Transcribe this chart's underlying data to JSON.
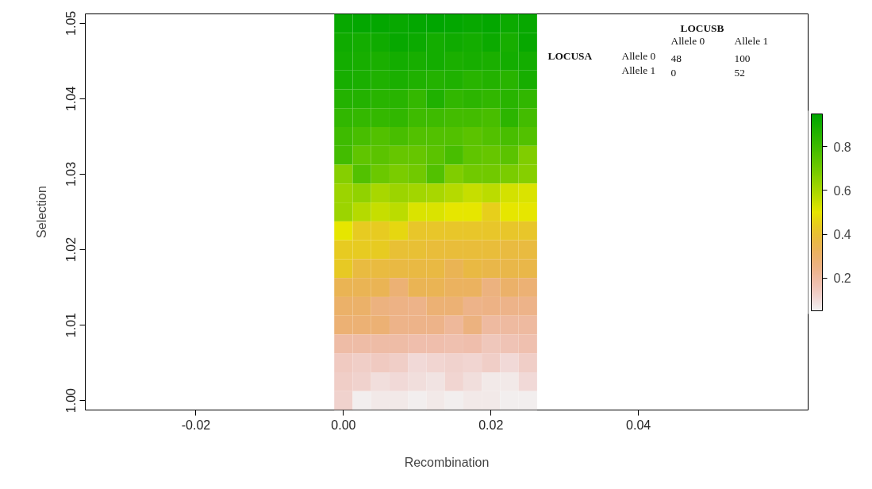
{
  "chart_data": {
    "type": "heatmap",
    "xlabel": "Recombination",
    "ylabel": "Selection",
    "x": [
      0,
      0.0025,
      0.005,
      0.0075,
      0.01,
      0.0125,
      0.015,
      0.0175,
      0.02,
      0.0225,
      0.025
    ],
    "y": [
      1.05,
      1.0475,
      1.045,
      1.0425,
      1.04,
      1.0375,
      1.035,
      1.0325,
      1.03,
      1.0275,
      1.025,
      1.0225,
      1.02,
      1.0175,
      1.015,
      1.0125,
      1.01,
      1.0075,
      1.005,
      1.0025,
      1.0
    ],
    "cells": [
      [
        0.93,
        0.94,
        0.94,
        0.93,
        0.94,
        0.95,
        0.94,
        0.93,
        0.94,
        0.92,
        0.93
      ],
      [
        0.91,
        0.9,
        0.91,
        0.93,
        0.92,
        0.9,
        0.91,
        0.9,
        0.92,
        0.89,
        0.93
      ],
      [
        0.9,
        0.89,
        0.88,
        0.9,
        0.89,
        0.9,
        0.88,
        0.89,
        0.88,
        0.9,
        0.9
      ],
      [
        0.89,
        0.88,
        0.87,
        0.88,
        0.87,
        0.86,
        0.87,
        0.85,
        0.86,
        0.85,
        0.89
      ],
      [
        0.86,
        0.86,
        0.85,
        0.85,
        0.82,
        0.87,
        0.83,
        0.84,
        0.83,
        0.85,
        0.83
      ],
      [
        0.83,
        0.82,
        0.82,
        0.83,
        0.8,
        0.8,
        0.79,
        0.79,
        0.78,
        0.84,
        0.79
      ],
      [
        0.8,
        0.78,
        0.76,
        0.78,
        0.76,
        0.76,
        0.76,
        0.74,
        0.76,
        0.78,
        0.76
      ],
      [
        0.79,
        0.73,
        0.74,
        0.72,
        0.72,
        0.74,
        0.78,
        0.73,
        0.72,
        0.74,
        0.67
      ],
      [
        0.66,
        0.76,
        0.71,
        0.68,
        0.7,
        0.76,
        0.67,
        0.7,
        0.7,
        0.68,
        0.66
      ],
      [
        0.62,
        0.64,
        0.6,
        0.62,
        0.61,
        0.6,
        0.58,
        0.55,
        0.57,
        0.53,
        0.52
      ],
      [
        0.62,
        0.58,
        0.55,
        0.57,
        0.52,
        0.52,
        0.5,
        0.5,
        0.45,
        0.5,
        0.5
      ],
      [
        0.5,
        0.44,
        0.44,
        0.47,
        0.42,
        0.42,
        0.42,
        0.42,
        0.42,
        0.42,
        0.42
      ],
      [
        0.44,
        0.44,
        0.44,
        0.4,
        0.4,
        0.39,
        0.39,
        0.39,
        0.39,
        0.38,
        0.38
      ],
      [
        0.43,
        0.38,
        0.38,
        0.37,
        0.37,
        0.37,
        0.34,
        0.37,
        0.36,
        0.36,
        0.36
      ],
      [
        0.34,
        0.34,
        0.34,
        0.28,
        0.34,
        0.34,
        0.32,
        0.32,
        0.26,
        0.3,
        0.28
      ],
      [
        0.3,
        0.3,
        0.26,
        0.25,
        0.24,
        0.28,
        0.28,
        0.24,
        0.25,
        0.24,
        0.24
      ],
      [
        0.28,
        0.28,
        0.28,
        0.24,
        0.24,
        0.24,
        0.21,
        0.26,
        0.2,
        0.2,
        0.2
      ],
      [
        0.19,
        0.19,
        0.19,
        0.19,
        0.18,
        0.18,
        0.17,
        0.18,
        0.15,
        0.16,
        0.17
      ],
      [
        0.14,
        0.13,
        0.14,
        0.13,
        0.1,
        0.11,
        0.12,
        0.11,
        0.13,
        0.1,
        0.13
      ],
      [
        0.13,
        0.12,
        0.09,
        0.1,
        0.09,
        0.08,
        0.11,
        0.09,
        0.07,
        0.07,
        0.1
      ],
      [
        0.12,
        0.06,
        0.07,
        0.07,
        0.06,
        0.07,
        0.06,
        0.07,
        0.07,
        0.06,
        0.06
      ]
    ],
    "clim": [
      0.05,
      0.95
    ],
    "cticks": [
      0.2,
      0.4,
      0.6,
      0.8
    ],
    "xlim": [
      -0.035,
      0.063
    ],
    "xticks": [
      {
        "value": -0.02,
        "label": "-0.02"
      },
      {
        "value": 0,
        "label": "0.00"
      },
      {
        "value": 0.02,
        "label": "0.02"
      },
      {
        "value": 0.04,
        "label": "0.04"
      }
    ],
    "ylim": [
      0.99875,
      1.05125
    ],
    "yticks": [
      {
        "value": 1.0,
        "label": "1.00"
      },
      {
        "value": 1.01,
        "label": "1.01"
      },
      {
        "value": 1.02,
        "label": "1.02"
      },
      {
        "value": 1.03,
        "label": "1.03"
      },
      {
        "value": 1.04,
        "label": "1.04"
      },
      {
        "value": 1.05,
        "label": "1.05"
      }
    ],
    "annotations": [
      "LOCUSB",
      "Allele 0",
      "Allele 1",
      "LOCUSA",
      "Allele 0",
      "48",
      "100",
      "Allele 1",
      "0",
      "52"
    ]
  }
}
